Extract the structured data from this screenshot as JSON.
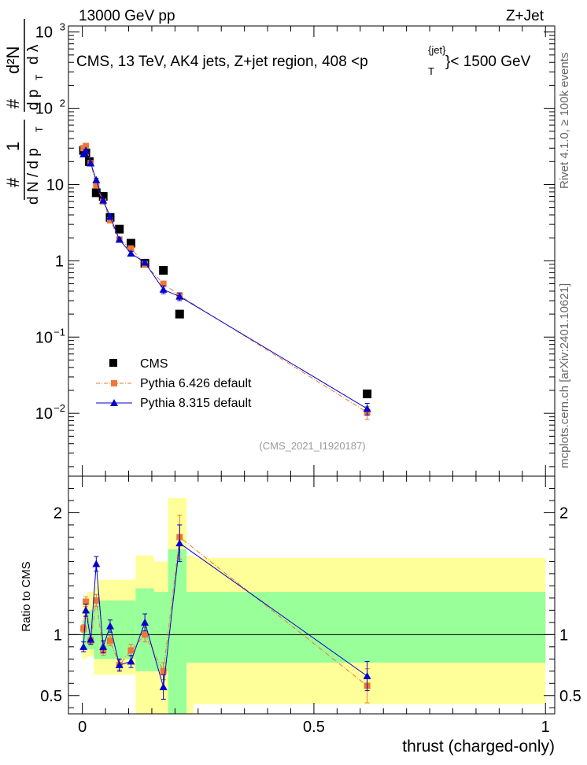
{
  "header": {
    "left": "13000 GeV pp",
    "right": "Z+Jet"
  },
  "side_labels": {
    "top": "Rivet 4.1.0, ≥ 100k events",
    "bottom": "mcplots.cern.ch [arXiv:2401.10621]"
  },
  "watermark": "(CMS_2021_I1920187)",
  "colors": {
    "cms": "#000000",
    "py6": "#ee7733",
    "py8": "#0000cc",
    "band_yellow": "#ffff99",
    "band_green": "#99ff99"
  },
  "chart_data": [
    {
      "type": "scatter",
      "panel": "main",
      "title": {
        "main": "CMS, 13 TeV, AK4 jets, Z+jet region, 408 <p",
        "sup": "{jet}",
        "sub": "T",
        "tail": "}< 1500 GeV"
      },
      "ylabel": {
        "one": "1",
        "hash": "#",
        "den": "d N / d p",
        "denT": "T",
        "num": "d²N",
        "den2": "d p",
        "den2T": "T",
        "dl": "d λ"
      },
      "yscale": "log",
      "ylim": [
        0.0015,
        1200
      ],
      "xlim": [
        -0.03,
        1.02
      ],
      "yticks": [
        {
          "v": 0.01,
          "base": "10",
          "exp": "−2"
        },
        {
          "v": 0.1,
          "base": "10",
          "exp": "−1"
        },
        {
          "v": 1,
          "base": "1",
          "exp": ""
        },
        {
          "v": 10,
          "base": "10",
          "exp": ""
        },
        {
          "v": 100,
          "base": "10",
          "exp": "2"
        },
        {
          "v": 1000,
          "base": "10",
          "exp": "3"
        }
      ],
      "legend": [
        {
          "name": "CMS",
          "marker": "square",
          "color": "#000000"
        },
        {
          "name": "Pythia 6.426 default",
          "marker": "square-dashdot",
          "color": "#ee7733"
        },
        {
          "name": "Pythia 8.315 default",
          "marker": "triangle-line",
          "color": "#0000cc"
        }
      ],
      "series": [
        {
          "name": "CMS",
          "x": [
            0.0025,
            0.0075,
            0.015,
            0.03,
            0.045,
            0.06,
            0.08,
            0.105,
            0.135,
            0.175,
            0.21,
            0.615
          ],
          "y": [
            28,
            26,
            20,
            7.8,
            7.0,
            3.7,
            2.6,
            1.7,
            0.93,
            0.75,
            0.2,
            0.018
          ]
        },
        {
          "name": "Pythia 6.426 default",
          "x": [
            0.0025,
            0.0075,
            0.018,
            0.03,
            0.045,
            0.06,
            0.08,
            0.105,
            0.135,
            0.175,
            0.21,
            0.615
          ],
          "y": [
            30,
            32,
            19,
            9.8,
            6.0,
            3.4,
            1.9,
            1.45,
            0.9,
            0.5,
            0.35,
            0.0103
          ],
          "yerr": [
            1,
            1,
            0.8,
            0.5,
            0.3,
            0.2,
            0.1,
            0.08,
            0.05,
            0.04,
            0.03,
            0.002
          ]
        },
        {
          "name": "Pythia 8.315 default",
          "x": [
            0.0025,
            0.0075,
            0.018,
            0.03,
            0.045,
            0.06,
            0.08,
            0.105,
            0.135,
            0.175,
            0.21,
            0.615
          ],
          "y": [
            25,
            28,
            19,
            11.5,
            6.2,
            3.8,
            1.9,
            1.25,
            0.95,
            0.42,
            0.34,
            0.0115
          ],
          "yerr": [
            1,
            1,
            0.8,
            0.5,
            0.3,
            0.2,
            0.1,
            0.08,
            0.06,
            0.05,
            0.04,
            0.002
          ]
        }
      ]
    },
    {
      "type": "line",
      "panel": "ratio",
      "ylabel": "Ratio to CMS",
      "xlabel": "thrust (charged-only)",
      "ylim": [
        0.35,
        2.3
      ],
      "xlim": [
        -0.03,
        1.02
      ],
      "yticks": [
        0.5,
        1,
        2
      ],
      "ytick_labels": [
        "0.5",
        "1",
        "2"
      ],
      "xticks": [
        0,
        0.5,
        1
      ],
      "xtick_labels": [
        "0",
        "0.5",
        "1"
      ],
      "bands": {
        "edges": [
          0,
          0.005,
          0.01,
          0.025,
          0.035,
          0.055,
          0.065,
          0.095,
          0.115,
          0.155,
          0.185,
          0.225,
          0.24,
          1.0
        ],
        "yellow": [
          [
            0.8,
            1.25
          ],
          [
            0.8,
            1.25
          ],
          [
            0.82,
            1.35
          ],
          [
            0.67,
            1.4
          ],
          [
            0.67,
            1.45
          ],
          [
            0.67,
            1.45
          ],
          [
            0.67,
            1.45
          ],
          [
            0.67,
            1.45
          ],
          [
            0.35,
            1.65
          ],
          [
            0.35,
            1.6
          ],
          [
            0.35,
            2.12
          ],
          [
            0.35,
            1.65
          ],
          [
            0.43,
            1.63
          ]
        ],
        "green": [
          [
            0.88,
            1.12
          ],
          [
            0.88,
            1.12
          ],
          [
            0.88,
            1.2
          ],
          [
            0.8,
            1.25
          ],
          [
            0.8,
            1.28
          ],
          [
            0.8,
            1.28
          ],
          [
            0.8,
            1.28
          ],
          [
            0.8,
            1.28
          ],
          [
            0.7,
            1.38
          ],
          [
            0.7,
            1.35
          ],
          [
            0.35,
            1.7
          ],
          [
            0.77,
            1.35
          ],
          [
            0.77,
            1.35
          ]
        ]
      },
      "series": [
        {
          "name": "Pythia 6.426 default",
          "x": [
            0.0025,
            0.0075,
            0.018,
            0.03,
            0.045,
            0.06,
            0.08,
            0.105,
            0.135,
            0.175,
            0.21,
            0.615
          ],
          "y": [
            1.05,
            1.27,
            0.95,
            1.28,
            0.87,
            0.95,
            0.75,
            0.87,
            1.0,
            0.7,
            1.8,
            0.58
          ],
          "yerr": [
            0.03,
            0.04,
            0.03,
            0.05,
            0.04,
            0.04,
            0.04,
            0.05,
            0.06,
            0.07,
            0.18,
            0.14
          ]
        },
        {
          "name": "Pythia 8.315 default",
          "x": [
            0.0025,
            0.0075,
            0.018,
            0.03,
            0.045,
            0.06,
            0.08,
            0.105,
            0.135,
            0.175,
            0.21,
            0.615
          ],
          "y": [
            0.9,
            1.2,
            0.96,
            1.58,
            0.9,
            1.07,
            0.75,
            0.78,
            1.1,
            0.57,
            1.75,
            0.66
          ],
          "yerr": [
            0.04,
            0.05,
            0.04,
            0.06,
            0.05,
            0.05,
            0.05,
            0.05,
            0.07,
            0.1,
            0.15,
            0.12
          ]
        }
      ]
    }
  ]
}
